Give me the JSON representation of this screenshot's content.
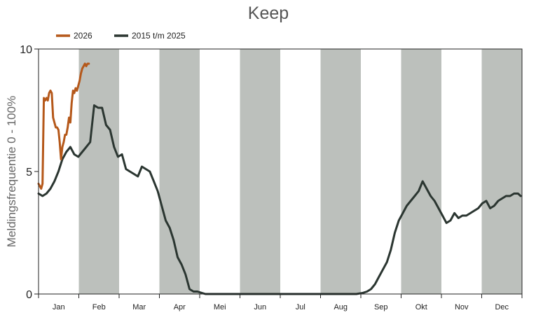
{
  "chart_data": {
    "type": "line",
    "title": "Keep",
    "ylabel": "Meldingsfrequentie 0 - 100%",
    "xlabel": "",
    "ylim": [
      0,
      10
    ],
    "yticks": [
      "0",
      "5",
      "10"
    ],
    "months": [
      "Jan",
      "Feb",
      "Mar",
      "Apr",
      "Mei",
      "Jun",
      "Jul",
      "Aug",
      "Sep",
      "Okt",
      "Nov",
      "Dec"
    ],
    "shaded_months": [
      1,
      3,
      5,
      7,
      9,
      11
    ],
    "shade_color": "#bcc0bc",
    "legend_position": "top-left",
    "series": [
      {
        "name": "2026",
        "color": "#b5581a",
        "x": [
          0,
          1,
          2,
          3,
          4,
          5,
          6,
          7,
          8,
          9,
          10,
          11,
          12,
          13,
          14,
          15,
          16,
          17,
          18,
          19,
          20,
          21,
          22,
          23,
          24,
          25,
          26,
          27,
          28,
          29,
          30,
          31,
          32,
          33,
          34,
          35,
          36,
          37,
          38
        ],
        "y": [
          4.5,
          4.4,
          4.3,
          4.5,
          8.0,
          7.9,
          8.0,
          7.9,
          8.2,
          8.3,
          8.2,
          7.2,
          7.0,
          6.8,
          6.8,
          6.7,
          6.2,
          5.5,
          6.0,
          6.2,
          6.5,
          6.5,
          6.8,
          7.2,
          7.0,
          7.8,
          8.3,
          8.2,
          8.4,
          8.3,
          8.5,
          8.7,
          9.0,
          9.2,
          9.3,
          9.4,
          9.3,
          9.4,
          9.4
        ]
      },
      {
        "name": "2015 t/m 2025",
        "color": "#2b3631",
        "x": [
          0,
          3,
          6,
          9,
          12,
          15,
          18,
          21,
          24,
          27,
          30,
          33,
          36,
          39,
          42,
          45,
          48,
          51,
          54,
          57,
          60,
          63,
          66,
          69,
          72,
          75,
          78,
          81,
          84,
          87,
          90,
          93,
          96,
          99,
          102,
          105,
          108,
          111,
          114,
          117,
          120,
          123,
          126,
          129,
          132,
          135,
          138,
          141,
          150,
          160,
          180,
          200,
          220,
          240,
          245,
          248,
          251,
          254,
          257,
          260,
          263,
          266,
          269,
          272,
          275,
          278,
          281,
          284,
          287,
          290,
          293,
          296,
          299,
          302,
          305,
          308,
          311,
          314,
          317,
          320,
          323,
          326,
          329,
          332,
          335,
          338,
          341,
          344,
          347,
          350,
          353,
          356,
          359,
          362,
          364
        ],
        "y": [
          4.1,
          4.0,
          4.1,
          4.3,
          4.6,
          5.0,
          5.5,
          5.8,
          6.0,
          5.7,
          5.6,
          5.8,
          6.0,
          6.2,
          7.7,
          7.6,
          7.6,
          6.9,
          6.7,
          6.0,
          5.6,
          5.7,
          5.1,
          5.0,
          4.9,
          4.8,
          5.2,
          5.1,
          5.0,
          4.6,
          4.2,
          3.6,
          3.0,
          2.7,
          2.2,
          1.5,
          1.2,
          0.8,
          0.2,
          0.1,
          0.1,
          0.05,
          0.0,
          0.0,
          0.0,
          0.0,
          0.0,
          0.0,
          0.0,
          0.0,
          0.0,
          0.0,
          0.0,
          0.0,
          0.05,
          0.1,
          0.2,
          0.4,
          0.7,
          1.0,
          1.3,
          1.8,
          2.5,
          3.0,
          3.3,
          3.6,
          3.8,
          4.0,
          4.2,
          4.6,
          4.3,
          4.0,
          3.8,
          3.5,
          3.2,
          2.9,
          3.0,
          3.3,
          3.1,
          3.2,
          3.2,
          3.3,
          3.4,
          3.5,
          3.7,
          3.8,
          3.5,
          3.6,
          3.8,
          3.9,
          4.0,
          4.0,
          4.1,
          4.1,
          4.0
        ]
      }
    ]
  }
}
